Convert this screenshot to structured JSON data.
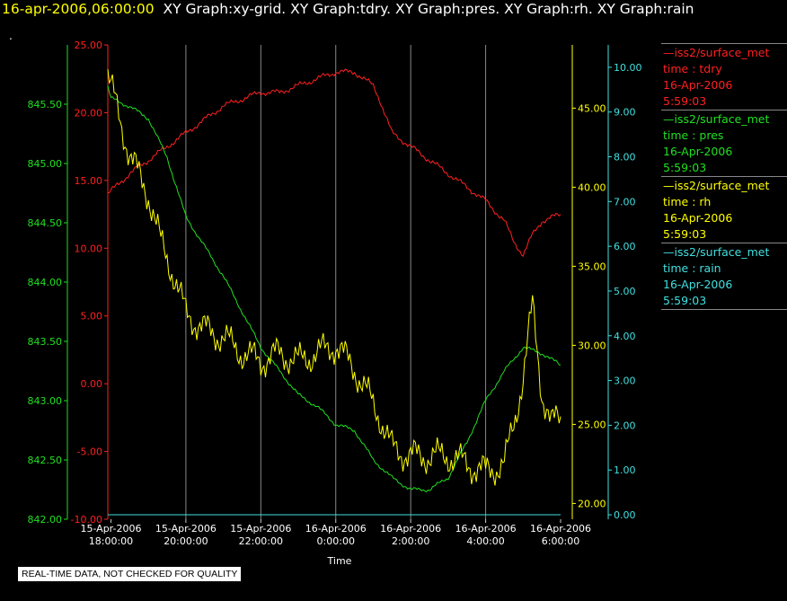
{
  "header": {
    "timestamp": "16-apr-2006,06:00:00",
    "titles": "XY Graph:xy-grid.  XY Graph:tdry.  XY Graph:pres.  XY Graph:rh.  XY Graph:rain",
    "dot": "."
  },
  "disclaimer": "REAL-TIME DATA, NOT CHECKED FOR QUALITY",
  "legend": [
    {
      "source": "iss2/surface_met",
      "variable": "time : tdry",
      "date": "16-Apr-2006",
      "time": "5:59:03",
      "color": "#ff2020"
    },
    {
      "source": "iss2/surface_met",
      "variable": "time : pres",
      "date": "16-Apr-2006",
      "time": "5:59:03",
      "color": "#20e020"
    },
    {
      "source": "iss2/surface_met",
      "variable": "time : rh",
      "date": "16-Apr-2006",
      "time": "5:59:03",
      "color": "#ffff00"
    },
    {
      "source": "iss2/surface_met",
      "variable": "time : rain",
      "date": "16-Apr-2006",
      "time": "5:59:03",
      "color": "#40e0e0"
    }
  ],
  "chart_data": {
    "type": "line",
    "xlabel": "Time",
    "x_range": [
      "15-Apr-2006 17:55",
      "16-Apr-2006 06:00"
    ],
    "x_ticks": [
      {
        "date": "15-Apr-2006",
        "time": "18:00:00"
      },
      {
        "date": "15-Apr-2006",
        "time": "20:00:00"
      },
      {
        "date": "15-Apr-2006",
        "time": "22:00:00"
      },
      {
        "date": "16-Apr-2006",
        "time": "0:00:00"
      },
      {
        "date": "16-Apr-2006",
        "time": "2:00:00"
      },
      {
        "date": "16-Apr-2006",
        "time": "4:00:00"
      },
      {
        "date": "16-Apr-2006",
        "time": "6:00:00"
      }
    ],
    "grid": "vertical",
    "axes": {
      "pres": {
        "color": "#20e020",
        "ylim": [
          842.0,
          846.0
        ],
        "ticks": [
          "842.00",
          "842.50",
          "843.00",
          "843.50",
          "844.00",
          "844.50",
          "845.00",
          "845.50"
        ]
      },
      "tdry": {
        "color": "#ff2020",
        "ylim": [
          -10.0,
          25.0
        ],
        "ticks": [
          "-10.00",
          "-5.00",
          "0.00",
          "5.00",
          "10.00",
          "15.00",
          "20.00",
          "25.00"
        ]
      },
      "rh": {
        "color": "#ffff00",
        "ylim": [
          19.0,
          49.0
        ],
        "ticks": [
          "20.00",
          "25.00",
          "30.00",
          "35.00",
          "40.00",
          "45.00"
        ]
      },
      "rain": {
        "color": "#40e0e0",
        "ylim": [
          -0.1,
          10.5
        ],
        "ticks": [
          "0.00",
          "1.00",
          "2.00",
          "3.00",
          "4.00",
          "5.00",
          "6.00",
          "7.00",
          "8.00",
          "9.00",
          "10.00"
        ]
      }
    },
    "series": [
      {
        "name": "tdry",
        "axis": "tdry",
        "color": "#ff2020",
        "x": [
          "15-Apr-2006 17:55",
          "15-Apr-2006 18:30",
          "15-Apr-2006 19:00",
          "15-Apr-2006 19:30",
          "15-Apr-2006 20:00",
          "15-Apr-2006 20:30",
          "15-Apr-2006 21:00",
          "15-Apr-2006 21:30",
          "15-Apr-2006 22:00",
          "15-Apr-2006 22:30",
          "15-Apr-2006 23:00",
          "15-Apr-2006 23:30",
          "16-Apr-2006 00:00",
          "16-Apr-2006 00:30",
          "16-Apr-2006 01:00",
          "16-Apr-2006 01:10",
          "16-Apr-2006 01:30",
          "16-Apr-2006 02:00",
          "16-Apr-2006 02:30",
          "16-Apr-2006 03:00",
          "16-Apr-2006 03:30",
          "16-Apr-2006 04:00",
          "16-Apr-2006 04:30",
          "16-Apr-2006 04:45",
          "16-Apr-2006 05:00",
          "16-Apr-2006 05:15",
          "16-Apr-2006 05:30",
          "16-Apr-2006 06:00"
        ],
        "values": [
          14.0,
          15.5,
          16.5,
          17.5,
          18.5,
          19.5,
          20.5,
          21.0,
          21.5,
          21.5,
          22.0,
          22.5,
          23.0,
          23.0,
          22.0,
          21.0,
          18.5,
          17.5,
          16.5,
          15.5,
          14.5,
          13.5,
          12.0,
          10.5,
          9.5,
          11.0,
          12.0,
          12.5
        ]
      },
      {
        "name": "pres",
        "axis": "pres",
        "color": "#20e020",
        "x": [
          "15-Apr-2006 17:55",
          "15-Apr-2006 18:00",
          "15-Apr-2006 18:30",
          "15-Apr-2006 19:00",
          "15-Apr-2006 19:30",
          "15-Apr-2006 20:00",
          "15-Apr-2006 20:30",
          "15-Apr-2006 21:00",
          "15-Apr-2006 21:30",
          "15-Apr-2006 22:00",
          "15-Apr-2006 22:30",
          "15-Apr-2006 23:00",
          "15-Apr-2006 23:30",
          "16-Apr-2006 00:00",
          "16-Apr-2006 00:30",
          "16-Apr-2006 01:00",
          "16-Apr-2006 01:30",
          "16-Apr-2006 02:00",
          "16-Apr-2006 02:30",
          "16-Apr-2006 03:00",
          "16-Apr-2006 03:30",
          "16-Apr-2006 04:00",
          "16-Apr-2006 04:30",
          "16-Apr-2006 05:00",
          "16-Apr-2006 05:30",
          "16-Apr-2006 06:00"
        ],
        "values": [
          845.65,
          845.55,
          845.48,
          845.38,
          845.05,
          844.55,
          844.3,
          844.05,
          843.75,
          843.45,
          843.25,
          843.05,
          842.95,
          842.8,
          842.75,
          842.5,
          842.35,
          842.25,
          842.25,
          842.35,
          842.65,
          843.0,
          843.25,
          843.45,
          843.4,
          843.3
        ]
      },
      {
        "name": "rh",
        "axis": "rh",
        "color": "#ffff00",
        "x": [
          "15-Apr-2006 17:55",
          "15-Apr-2006 18:10",
          "15-Apr-2006 18:30",
          "15-Apr-2006 19:00",
          "15-Apr-2006 19:20",
          "15-Apr-2006 19:40",
          "15-Apr-2006 20:00",
          "15-Apr-2006 20:30",
          "15-Apr-2006 21:00",
          "15-Apr-2006 21:30",
          "15-Apr-2006 22:00",
          "15-Apr-2006 22:30",
          "15-Apr-2006 23:00",
          "15-Apr-2006 23:30",
          "16-Apr-2006 00:00",
          "16-Apr-2006 00:30",
          "16-Apr-2006 00:50",
          "16-Apr-2006 01:10",
          "16-Apr-2006 01:30",
          "16-Apr-2006 02:00",
          "16-Apr-2006 02:30",
          "16-Apr-2006 03:00",
          "16-Apr-2006 03:30",
          "16-Apr-2006 04:00",
          "16-Apr-2006 04:30",
          "16-Apr-2006 04:45",
          "16-Apr-2006 05:00",
          "16-Apr-2006 05:15",
          "16-Apr-2006 05:30",
          "16-Apr-2006 05:45",
          "16-Apr-2006 06:00"
        ],
        "values": [
          47.0,
          45.0,
          42.0,
          39.5,
          36.5,
          34.5,
          32.0,
          31.0,
          30.5,
          29.5,
          29.0,
          29.5,
          29.0,
          29.5,
          30.0,
          28.5,
          27.0,
          25.5,
          23.5,
          23.0,
          23.0,
          23.0,
          22.5,
          22.0,
          22.5,
          25.0,
          28.0,
          32.5,
          27.0,
          25.0,
          25.5
        ]
      },
      {
        "name": "rain",
        "axis": "rain",
        "color": "#40e0e0",
        "x": [
          "15-Apr-2006 17:55",
          "16-Apr-2006 06:00"
        ],
        "values": [
          0.0,
          0.0
        ]
      }
    ]
  }
}
